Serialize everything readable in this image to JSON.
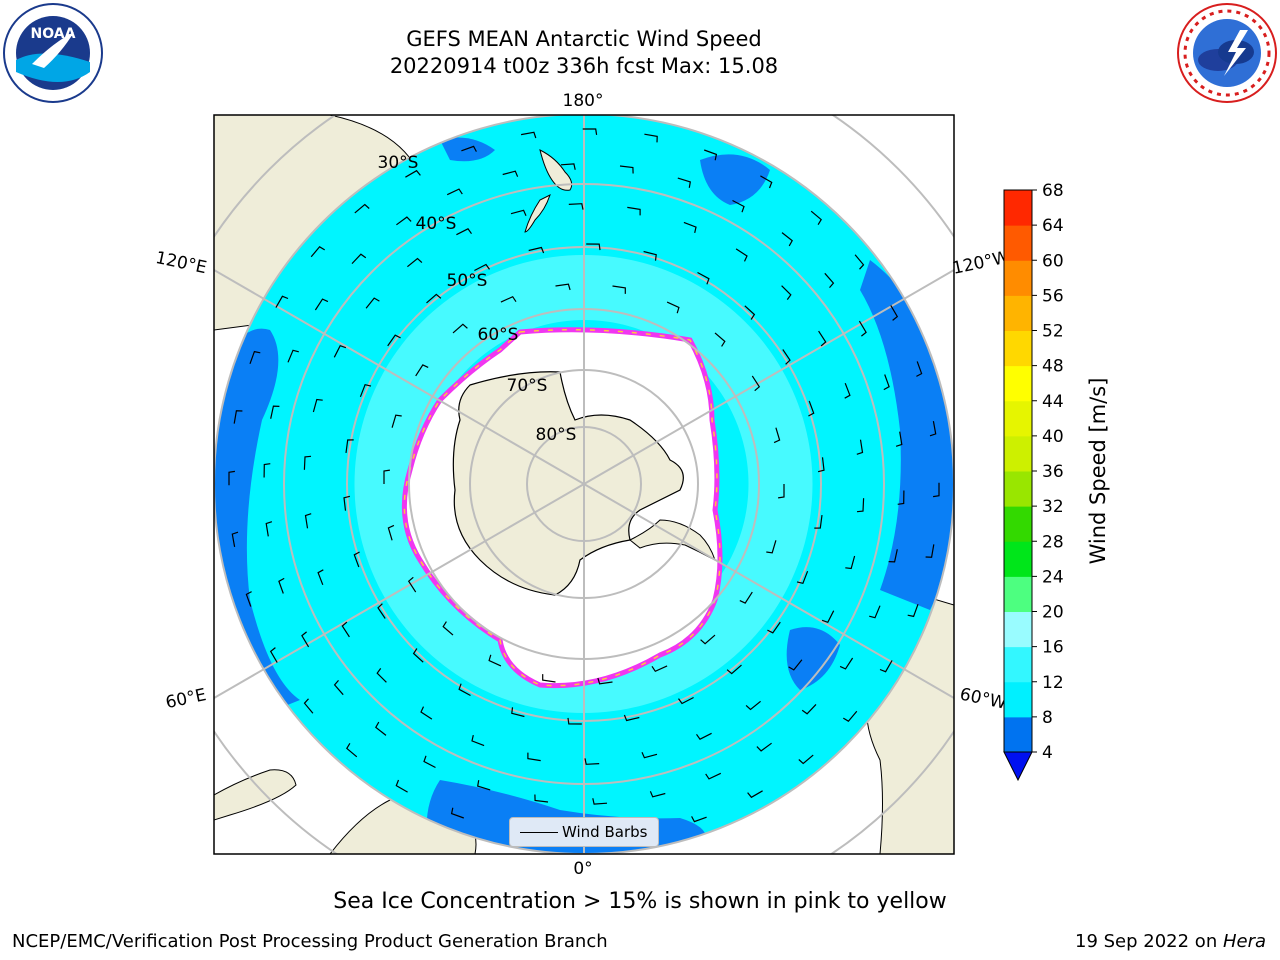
{
  "header": {
    "title_line1": "GEFS MEAN Antarctic Wind Speed",
    "title_line2": "20220914 t00z 336h fcst   Max: 15.08"
  },
  "logos": {
    "left": "noaa-logo",
    "right": "nws-logo"
  },
  "map": {
    "projection": "south-polar-stereographic",
    "longitude_labels": {
      "top": "180°",
      "bottom": "0°",
      "upper_left": "120°E",
      "upper_right": "120°W",
      "lower_left": "60°E",
      "lower_right": "60°W"
    },
    "latitude_labels": [
      "30°S",
      "40°S",
      "50°S",
      "60°S",
      "70°S",
      "80°S"
    ],
    "colors": {
      "land": "#efedd9",
      "ocean_low": "#0a7ff5",
      "ocean_mid": "#00f5ff",
      "ocean_high": "#4ffbff",
      "sea_ice_edge": "#f036f0",
      "grid": "#bdbdbd"
    }
  },
  "legend": {
    "label": "Wind Barbs"
  },
  "colorbar": {
    "label": "Wind Speed [m/s]",
    "ticks": [
      "4",
      "8",
      "12",
      "16",
      "20",
      "24",
      "28",
      "32",
      "36",
      "40",
      "44",
      "48",
      "52",
      "56",
      "60",
      "64",
      "68"
    ],
    "colors": [
      "#0073f0",
      "#00f0ff",
      "#33f7ff",
      "#99fcff",
      "#4dff80",
      "#00e61a",
      "#33d900",
      "#99e600",
      "#cdf000",
      "#e6f500",
      "#ffff00",
      "#ffd800",
      "#ffb400",
      "#ff8c00",
      "#ff5a00",
      "#ff2800"
    ],
    "extend_color": "#0010f0"
  },
  "caption": "Sea Ice Concentration > 15% is shown in pink to yellow",
  "footer": {
    "left": "NCEP/EMC/Verification Post Processing Product Generation Branch",
    "right_date": "19 Sep 2022 on ",
    "right_host": "Hera"
  }
}
